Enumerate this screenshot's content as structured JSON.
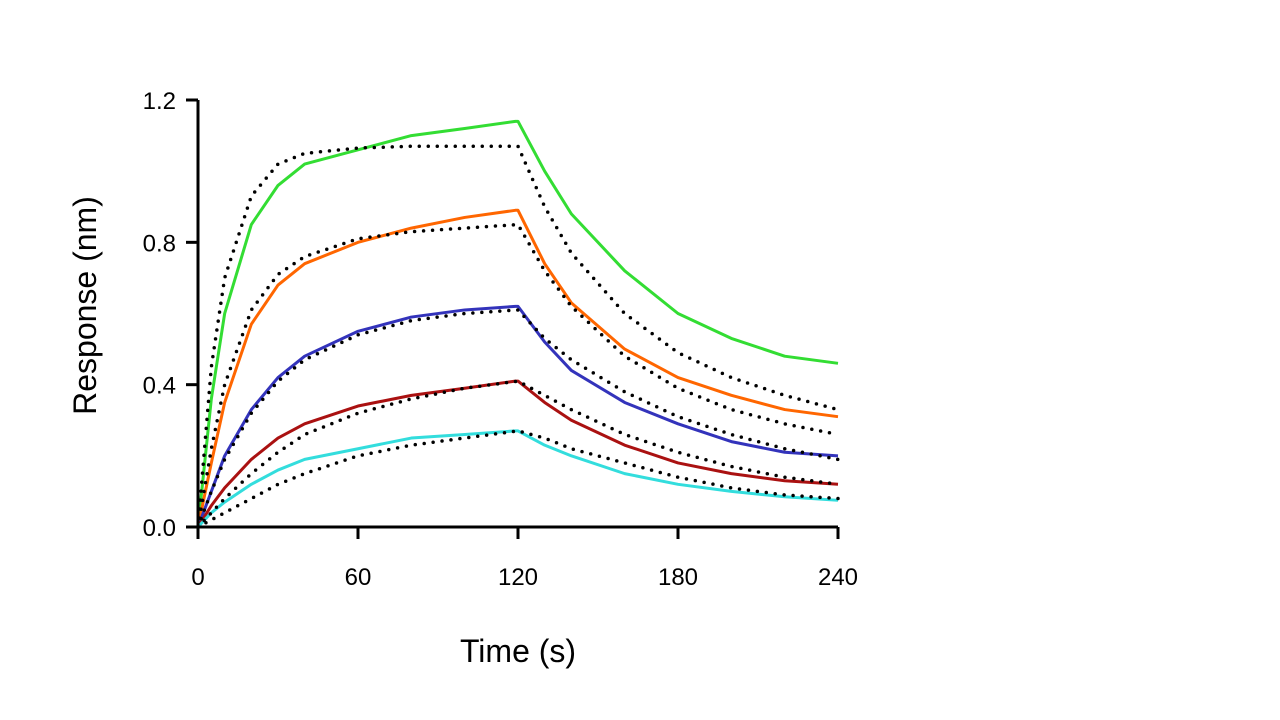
{
  "chart_data": {
    "type": "line",
    "xlabel": "Time (s)",
    "ylabel": "Response (nm)",
    "xlim": [
      0,
      240
    ],
    "ylim": [
      0,
      1.2
    ],
    "x_ticks": [
      0,
      60,
      120,
      180,
      240
    ],
    "x_tick_labels": [
      "0",
      "60",
      "120",
      "180",
      "240"
    ],
    "y_ticks": [
      0,
      0.4,
      0.8,
      1.2
    ],
    "y_tick_labels": [
      "0.0",
      "0.4",
      "0.8",
      "1.2"
    ],
    "grid": false,
    "legend": "none",
    "series": [
      {
        "color": "#33dd33",
        "style": "solid",
        "x": [
          0,
          5,
          10,
          20,
          30,
          40,
          60,
          80,
          100,
          119,
          120,
          130,
          140,
          160,
          180,
          200,
          220,
          240
        ],
        "y": [
          0,
          0.36,
          0.6,
          0.85,
          0.96,
          1.02,
          1.06,
          1.1,
          1.12,
          1.14,
          1.14,
          1.0,
          0.88,
          0.72,
          0.6,
          0.53,
          0.48,
          0.46
        ]
      },
      {
        "color": "#ff6600",
        "style": "solid",
        "x": [
          0,
          5,
          10,
          20,
          30,
          40,
          60,
          80,
          100,
          119,
          120,
          130,
          140,
          160,
          180,
          200,
          220,
          240
        ],
        "y": [
          0,
          0.18,
          0.35,
          0.57,
          0.68,
          0.74,
          0.8,
          0.84,
          0.87,
          0.89,
          0.89,
          0.74,
          0.63,
          0.5,
          0.42,
          0.37,
          0.33,
          0.31
        ]
      },
      {
        "color": "#3333bb",
        "style": "solid",
        "x": [
          0,
          5,
          10,
          20,
          30,
          40,
          60,
          80,
          100,
          119,
          120,
          130,
          140,
          160,
          180,
          200,
          220,
          240
        ],
        "y": [
          0,
          0.1,
          0.2,
          0.33,
          0.42,
          0.48,
          0.55,
          0.59,
          0.61,
          0.62,
          0.62,
          0.52,
          0.44,
          0.35,
          0.29,
          0.24,
          0.21,
          0.2
        ]
      },
      {
        "color": "#aa1111",
        "style": "solid",
        "x": [
          0,
          5,
          10,
          20,
          30,
          40,
          60,
          80,
          100,
          119,
          120,
          130,
          140,
          160,
          180,
          200,
          220,
          240
        ],
        "y": [
          0,
          0.06,
          0.11,
          0.19,
          0.25,
          0.29,
          0.34,
          0.37,
          0.39,
          0.41,
          0.41,
          0.35,
          0.3,
          0.23,
          0.18,
          0.15,
          0.13,
          0.12
        ]
      },
      {
        "color": "#33dddd",
        "style": "solid",
        "x": [
          0,
          5,
          10,
          20,
          30,
          40,
          60,
          80,
          100,
          119,
          120,
          130,
          140,
          160,
          180,
          200,
          220,
          240
        ],
        "y": [
          0,
          0.04,
          0.07,
          0.12,
          0.16,
          0.19,
          0.22,
          0.25,
          0.26,
          0.27,
          0.27,
          0.23,
          0.2,
          0.15,
          0.12,
          0.1,
          0.085,
          0.075
        ]
      },
      {
        "color": "#000000",
        "style": "dotted",
        "x": [
          0,
          5,
          10,
          20,
          30,
          40,
          60,
          80,
          100,
          120,
          130,
          140,
          160,
          180,
          200,
          220,
          240
        ],
        "y": [
          0,
          0.45,
          0.7,
          0.93,
          1.02,
          1.05,
          1.065,
          1.07,
          1.07,
          1.07,
          0.9,
          0.77,
          0.6,
          0.49,
          0.42,
          0.37,
          0.33
        ]
      },
      {
        "color": "#000000",
        "style": "dotted",
        "x": [
          0,
          5,
          10,
          20,
          30,
          40,
          60,
          80,
          100,
          120,
          130,
          140,
          160,
          180,
          200,
          220,
          240
        ],
        "y": [
          0,
          0.22,
          0.4,
          0.61,
          0.71,
          0.76,
          0.81,
          0.83,
          0.84,
          0.85,
          0.72,
          0.62,
          0.48,
          0.39,
          0.33,
          0.29,
          0.26
        ]
      },
      {
        "color": "#000000",
        "style": "dotted",
        "x": [
          0,
          5,
          10,
          20,
          30,
          40,
          60,
          80,
          100,
          120,
          130,
          140,
          160,
          180,
          200,
          220,
          240
        ],
        "y": [
          0,
          0.1,
          0.19,
          0.32,
          0.41,
          0.47,
          0.54,
          0.58,
          0.6,
          0.61,
          0.53,
          0.47,
          0.38,
          0.31,
          0.26,
          0.22,
          0.19
        ]
      },
      {
        "color": "#000000",
        "style": "dotted",
        "x": [
          0,
          5,
          10,
          20,
          30,
          40,
          60,
          80,
          100,
          120,
          130,
          140,
          160,
          180,
          200,
          220,
          240
        ],
        "y": [
          0,
          0.04,
          0.08,
          0.15,
          0.21,
          0.26,
          0.32,
          0.36,
          0.39,
          0.41,
          0.37,
          0.33,
          0.26,
          0.21,
          0.17,
          0.14,
          0.12
        ]
      },
      {
        "color": "#000000",
        "style": "dotted",
        "x": [
          0,
          5,
          10,
          20,
          30,
          40,
          60,
          80,
          100,
          120,
          130,
          140,
          160,
          180,
          200,
          220,
          240
        ],
        "y": [
          0,
          0.02,
          0.04,
          0.08,
          0.12,
          0.15,
          0.2,
          0.23,
          0.25,
          0.27,
          0.25,
          0.22,
          0.18,
          0.14,
          0.11,
          0.09,
          0.08
        ]
      }
    ]
  }
}
